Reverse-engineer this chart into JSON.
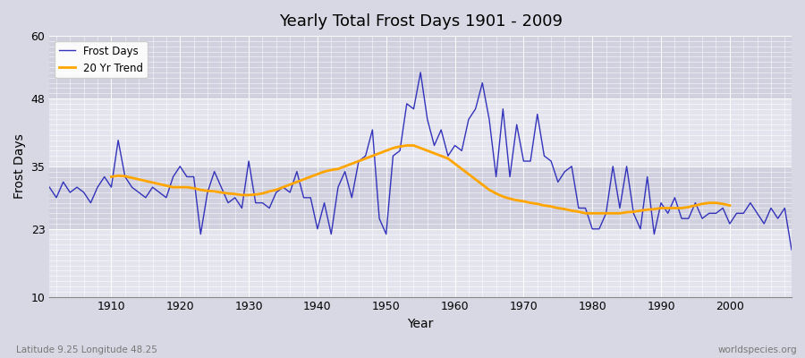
{
  "title": "Yearly Total Frost Days 1901 - 2009",
  "xlabel": "Year",
  "ylabel": "Frost Days",
  "subtitle": "Latitude 9.25 Longitude 48.25",
  "watermark": "worldspecies.org",
  "ylim": [
    10,
    60
  ],
  "yticks": [
    10,
    23,
    35,
    48,
    60
  ],
  "xlim": [
    1901,
    2009
  ],
  "bg_color": "#dcdce8",
  "plot_bg": "#dcdce8",
  "line_color": "#3333bb",
  "trend_color": "#ffa500",
  "years": [
    1901,
    1902,
    1903,
    1904,
    1905,
    1906,
    1907,
    1908,
    1909,
    1910,
    1911,
    1912,
    1913,
    1914,
    1915,
    1916,
    1917,
    1918,
    1919,
    1920,
    1921,
    1922,
    1923,
    1924,
    1925,
    1926,
    1927,
    1928,
    1929,
    1930,
    1931,
    1932,
    1933,
    1934,
    1935,
    1936,
    1937,
    1938,
    1939,
    1940,
    1941,
    1942,
    1943,
    1944,
    1945,
    1946,
    1947,
    1948,
    1949,
    1950,
    1951,
    1952,
    1953,
    1954,
    1955,
    1956,
    1957,
    1958,
    1959,
    1960,
    1961,
    1962,
    1963,
    1964,
    1965,
    1966,
    1967,
    1968,
    1969,
    1970,
    1971,
    1972,
    1973,
    1974,
    1975,
    1976,
    1977,
    1978,
    1979,
    1980,
    1981,
    1982,
    1983,
    1984,
    1985,
    1986,
    1987,
    1988,
    1989,
    1990,
    1991,
    1992,
    1993,
    1994,
    1995,
    1996,
    1997,
    1998,
    1999,
    2000,
    2001,
    2002,
    2003,
    2004,
    2005,
    2006,
    2007,
    2008,
    2009
  ],
  "frost_days": [
    31,
    29,
    32,
    30,
    31,
    30,
    28,
    31,
    33,
    31,
    40,
    33,
    31,
    30,
    29,
    31,
    30,
    29,
    33,
    35,
    33,
    33,
    22,
    30,
    34,
    31,
    28,
    29,
    27,
    36,
    28,
    28,
    27,
    30,
    31,
    30,
    34,
    29,
    29,
    23,
    28,
    22,
    31,
    34,
    29,
    36,
    37,
    42,
    25,
    22,
    37,
    38,
    47,
    46,
    53,
    44,
    39,
    42,
    37,
    39,
    38,
    44,
    46,
    51,
    44,
    33,
    46,
    33,
    43,
    36,
    36,
    45,
    37,
    36,
    32,
    34,
    35,
    27,
    27,
    23,
    23,
    26,
    35,
    27,
    35,
    26,
    23,
    33,
    22,
    28,
    26,
    29,
    25,
    25,
    28,
    25,
    26,
    26,
    27,
    24,
    26,
    26,
    28,
    26,
    24,
    27,
    25,
    27,
    19
  ],
  "trend_start": 1910,
  "trend_values": [
    33.0,
    33.2,
    33.1,
    32.8,
    32.5,
    32.2,
    31.9,
    31.6,
    31.3,
    31.0,
    31.0,
    31.0,
    30.8,
    30.5,
    30.3,
    30.2,
    30.0,
    29.8,
    29.7,
    29.5,
    29.5,
    29.6,
    29.8,
    30.2,
    30.5,
    31.0,
    31.5,
    32.0,
    32.5,
    33.0,
    33.5,
    34.0,
    34.3,
    34.5,
    35.0,
    35.5,
    36.0,
    36.5,
    37.0,
    37.5,
    38.0,
    38.5,
    38.8,
    39.0,
    39.0,
    38.5,
    38.0,
    37.5,
    37.0,
    36.5,
    35.5,
    34.5,
    33.5,
    32.5,
    31.5,
    30.5,
    29.8,
    29.2,
    28.8,
    28.5,
    28.3,
    28.0,
    27.8,
    27.5,
    27.3,
    27.0,
    26.8,
    26.5,
    26.3,
    26.0,
    26.0,
    26.0,
    26.0,
    26.0,
    26.0,
    26.2,
    26.3,
    26.5,
    26.7,
    26.8,
    27.0,
    27.0,
    27.0,
    27.0,
    27.2,
    27.5,
    27.8,
    28.0,
    28.0,
    27.8,
    27.5
  ]
}
